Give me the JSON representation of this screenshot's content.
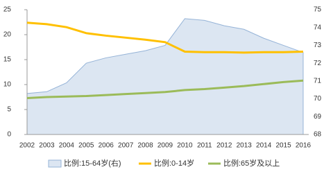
{
  "chart_data": {
    "type": "line",
    "categories": [
      "2002",
      "2003",
      "2004",
      "2005",
      "2006",
      "2007",
      "2008",
      "2009",
      "2010",
      "2011",
      "2012",
      "2013",
      "2014",
      "2015",
      "2016"
    ],
    "series": [
      {
        "name": "比例:15-64岁(右)",
        "kind": "area",
        "axis": "y2",
        "color": "#95b3d7",
        "fill": "#dce6f2",
        "values": [
          70.3,
          70.4,
          70.9,
          72.0,
          72.3,
          72.5,
          72.7,
          73.0,
          74.5,
          74.4,
          74.1,
          73.9,
          73.4,
          73.0,
          72.6
        ]
      },
      {
        "name": "比例:0-14岁",
        "kind": "line",
        "color": "#ffc000",
        "values": [
          22.4,
          22.1,
          21.5,
          20.3,
          19.8,
          19.4,
          19.0,
          18.5,
          16.6,
          16.5,
          16.5,
          16.4,
          16.5,
          16.5,
          16.6
        ]
      },
      {
        "name": "比例:65岁及以上",
        "kind": "line",
        "color": "#9bbb59",
        "values": [
          7.3,
          7.5,
          7.6,
          7.7,
          7.9,
          8.1,
          8.3,
          8.5,
          8.9,
          9.1,
          9.4,
          9.7,
          10.1,
          10.5,
          10.8
        ]
      }
    ],
    "ylim": [
      0,
      25
    ],
    "yticks": [
      0,
      5,
      10,
      15,
      20,
      25
    ],
    "y2lim": [
      68,
      75
    ],
    "y2ticks": [
      68,
      69,
      70,
      71,
      72,
      73,
      74,
      75
    ],
    "legend": "bottom"
  }
}
